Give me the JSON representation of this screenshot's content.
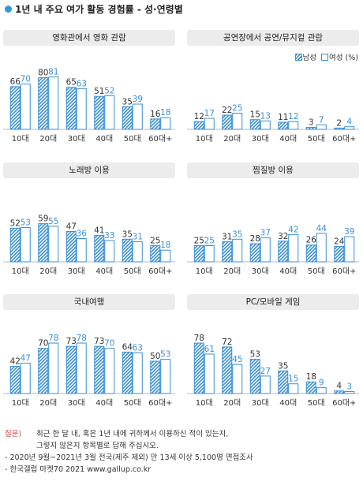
{
  "title": "1년 내 주요 여가 활동 경험률 - 성·연령별",
  "legend": {
    "male": "남성",
    "female": "여성",
    "unit": "(%)"
  },
  "colors": {
    "bar": "#3a8fd6",
    "label": "#3a8fd6",
    "header_bg": "#ececec",
    "title_dot": "#3399dd"
  },
  "chart_data": [
    {
      "type": "bar",
      "title": "영화관에서 영화 관람",
      "categories": [
        "10대",
        "20대",
        "30대",
        "40대",
        "50대",
        "60대+"
      ],
      "series": [
        {
          "name": "남성",
          "values": [
            66,
            80,
            65,
            51,
            35,
            16
          ]
        },
        {
          "name": "여성",
          "values": [
            70,
            81,
            63,
            52,
            39,
            18
          ]
        }
      ]
    },
    {
      "type": "bar",
      "title": "공연장에서 공연/뮤지컬 관람",
      "categories": [
        "10대",
        "20대",
        "30대",
        "40대",
        "50대",
        "60대+"
      ],
      "series": [
        {
          "name": "남성",
          "values": [
            12,
            22,
            15,
            11,
            3,
            2
          ]
        },
        {
          "name": "여성",
          "values": [
            17,
            25,
            13,
            12,
            7,
            4
          ]
        }
      ]
    },
    {
      "type": "bar",
      "title": "노래방 이용",
      "categories": [
        "10대",
        "20대",
        "30대",
        "40대",
        "50대",
        "60대+"
      ],
      "series": [
        {
          "name": "남성",
          "values": [
            52,
            59,
            47,
            41,
            35,
            25
          ]
        },
        {
          "name": "여성",
          "values": [
            53,
            55,
            36,
            33,
            31,
            18
          ]
        }
      ]
    },
    {
      "type": "bar",
      "title": "찜질방 이용",
      "categories": [
        "10대",
        "20대",
        "30대",
        "40대",
        "50대",
        "60대+"
      ],
      "series": [
        {
          "name": "남성",
          "values": [
            25,
            31,
            28,
            32,
            26,
            24
          ]
        },
        {
          "name": "여성",
          "values": [
            25,
            35,
            37,
            42,
            44,
            39
          ]
        }
      ]
    },
    {
      "type": "bar",
      "title": "국내여행",
      "categories": [
        "10대",
        "20대",
        "30대",
        "40대",
        "50대",
        "60대+"
      ],
      "series": [
        {
          "name": "남성",
          "values": [
            42,
            70,
            73,
            73,
            64,
            50
          ]
        },
        {
          "name": "여성",
          "values": [
            47,
            78,
            78,
            70,
            63,
            53
          ]
        }
      ]
    },
    {
      "type": "bar",
      "title": "PC/모바일 게임",
      "categories": [
        "10대",
        "20대",
        "30대",
        "40대",
        "50대",
        "60대+"
      ],
      "series": [
        {
          "name": "남성",
          "values": [
            78,
            72,
            53,
            35,
            18,
            4
          ]
        },
        {
          "name": "여성",
          "values": [
            61,
            45,
            27,
            15,
            9,
            3
          ]
        }
      ]
    }
  ],
  "notes": {
    "question_label": "질문)",
    "question_line1": "최근 한 달 내, 혹은 1년 내에 귀하께서 이용하신 적이 있는지,",
    "question_line2": "그렇지 않은지 항목별로 답해 주십시오.",
    "survey": "- 2020년 9월~2021년 3월 전국(제주 제외) 만 13세 이상 5,100명 면접조사",
    "source": "- 한국갤럽 마켓70 2021 www.gallup.co.kr"
  }
}
